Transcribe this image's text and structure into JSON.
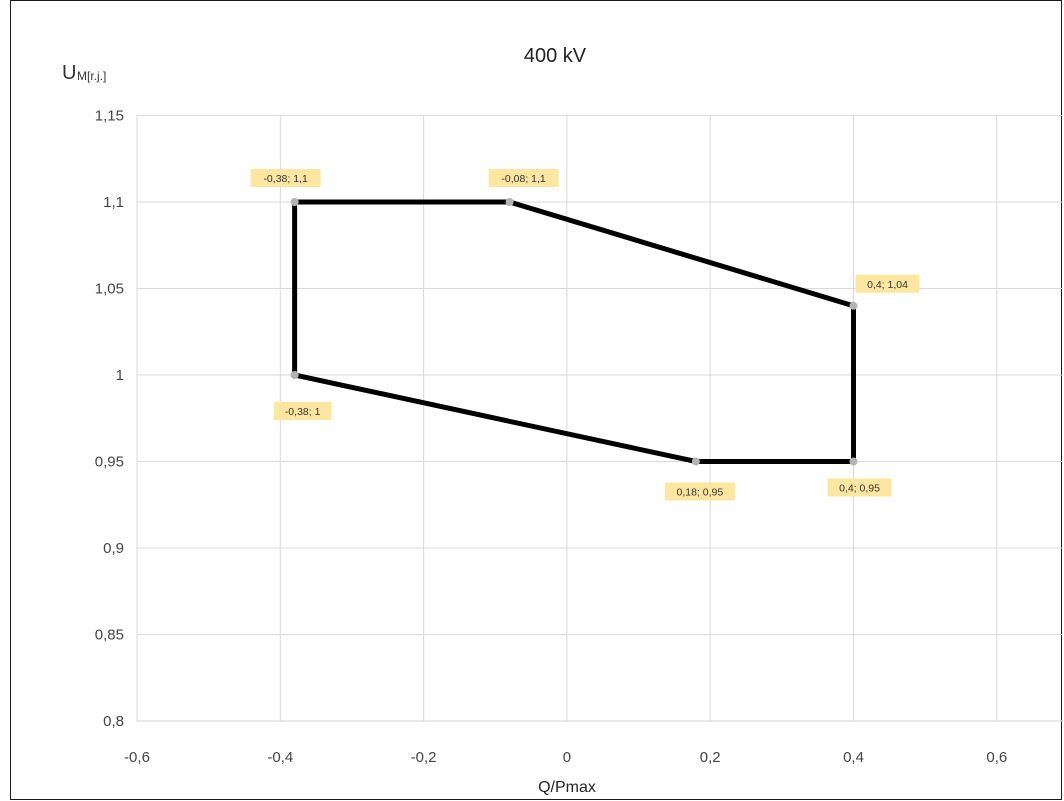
{
  "chart_data": {
    "type": "line",
    "title": "400 kV",
    "xlabel": "Q/Pmax",
    "ylabel": {
      "main": "U",
      "subscript": "M[r.j.]"
    },
    "xlim": [
      -0.6,
      0.7
    ],
    "ylim": [
      0.8,
      1.15
    ],
    "x_ticks": [
      -0.6,
      -0.4,
      -0.2,
      0,
      0.2,
      0.4,
      0.6
    ],
    "x_tick_labels": [
      "-0,6",
      "-0,4",
      "-0,2",
      "0",
      "0,2",
      "0,4",
      "0,6"
    ],
    "y_ticks": [
      0.8,
      0.85,
      0.9,
      0.95,
      1.0,
      1.05,
      1.1,
      1.15
    ],
    "y_tick_labels": [
      "0,8",
      "0,85",
      "0,9",
      "0,95",
      "1",
      "1,05",
      "1,1",
      "1,15"
    ],
    "grid": true,
    "series": [
      {
        "points": [
          {
            "x": -0.38,
            "y": 1.1,
            "label": "-0,38; 1,1"
          },
          {
            "x": -0.08,
            "y": 1.1,
            "label": "-0,08; 1,1"
          },
          {
            "x": 0.4,
            "y": 1.04,
            "label": "0,4; 1,04"
          },
          {
            "x": 0.4,
            "y": 0.95,
            "label": "0,4; 0,95"
          },
          {
            "x": 0.18,
            "y": 0.95,
            "label": "0,18; 0,95"
          },
          {
            "x": -0.38,
            "y": 1.0,
            "label": "-0,38; 1"
          },
          {
            "x": -0.38,
            "y": 1.1,
            "label": ""
          }
        ]
      }
    ],
    "colors": {
      "line": "#000000",
      "marker": "#b3b3b3",
      "grid": "#d9d9d9",
      "label_bg": "#fde7a0"
    }
  }
}
